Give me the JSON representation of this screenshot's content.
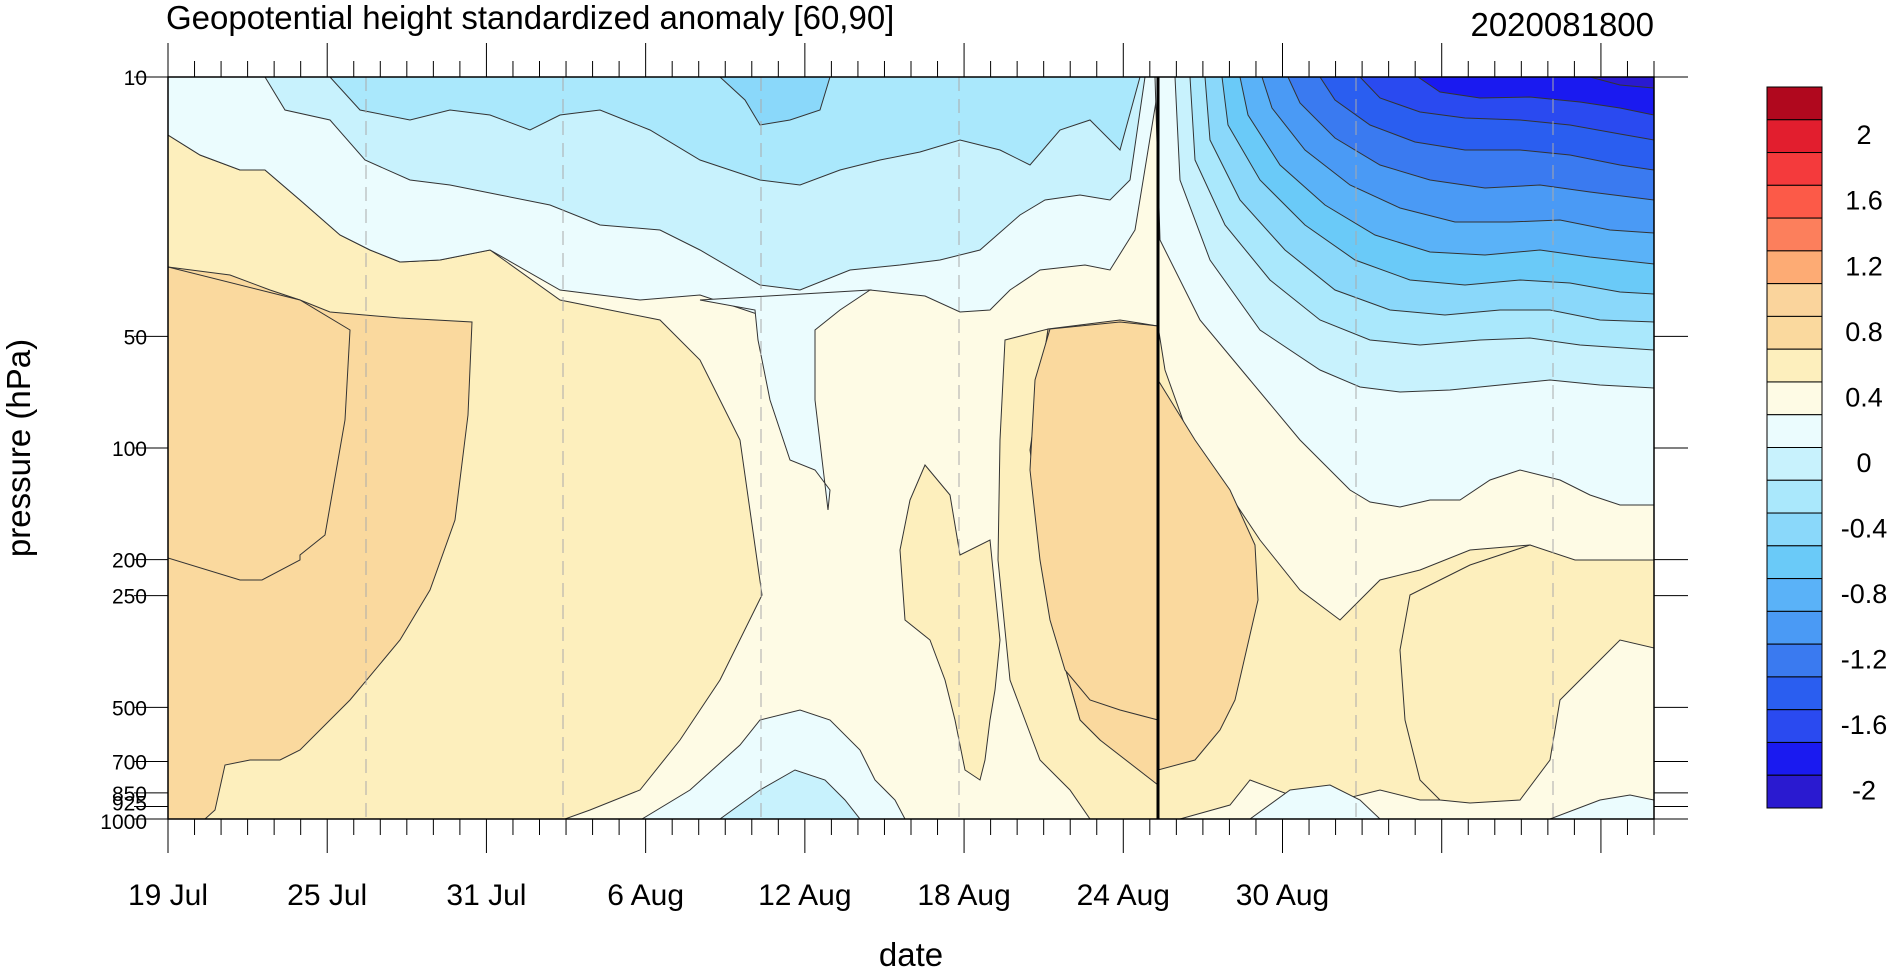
{
  "chart_data": {
    "type": "heatmap",
    "title": "Geopotential height standardized anomaly [60,90]",
    "date_label": "2020081800",
    "xlabel": "date",
    "ylabel": "pressure (hPa)",
    "x_ticks": [
      "19 Jul",
      "25 Jul",
      "31 Jul",
      "6 Aug",
      "12 Aug",
      "18 Aug",
      "24 Aug",
      "30 Aug"
    ],
    "y_ticks": [
      "10",
      "50",
      "100",
      "200",
      "250",
      "500",
      "700",
      "850",
      "925",
      "1000"
    ],
    "y_scale": "log (pressure)",
    "xlim": [
      "19 Jul",
      "3 Sep"
    ],
    "ylim": [
      1000,
      10
    ],
    "analysis_line": "18 Aug",
    "colorbar": {
      "levels": [
        -2.2,
        -2.0,
        -1.8,
        -1.6,
        -1.4,
        -1.2,
        -1.0,
        -0.8,
        -0.6,
        -0.4,
        -0.2,
        0,
        0.2,
        0.4,
        0.6,
        0.8,
        1.0,
        1.2,
        1.4,
        1.6,
        1.8,
        2.0,
        2.2
      ],
      "labels": [
        "2",
        "1.6",
        "1.2",
        "0.8",
        "0.4",
        "0",
        "-0.4",
        "-0.8",
        "-1.2",
        "-1.6",
        "-2"
      ],
      "colors": [
        "#2a1ad0",
        "#1a1af0",
        "#2a4af0",
        "#2a5ef0",
        "#3a7af0",
        "#4a9af5",
        "#5ab2f8",
        "#6acaf8",
        "#8ad8fa",
        "#aae8fc",
        "#c8f2fd",
        "#ebfcfe",
        "#fefbe5",
        "#fdefbd",
        "#fad99e",
        "#fad49c",
        "#fdab74",
        "#fc7f5c",
        "#fc5a48",
        "#f43a3c",
        "#e21e2e",
        "#b0081e"
      ]
    },
    "regions": [
      {
        "date": "19-31 Jul",
        "pressure": "20-1000",
        "value": 0.3
      },
      {
        "date": "20-27 Jul",
        "pressure": "40-400",
        "value": 0.7
      },
      {
        "date": "21-23 Jul",
        "pressure": "50-100",
        "value": 0.9
      },
      {
        "date": "6-8 Aug",
        "pressure": "10-140",
        "value": -0.2
      },
      {
        "date": "15-21 Aug",
        "pressure": "50-650",
        "value": 0.7
      },
      {
        "date": "26 Aug-3 Sep",
        "pressure": "200-850",
        "value": 0.3
      },
      {
        "date": "18 Aug-3 Sep",
        "pressure": "10-140",
        "value": -1.0
      },
      {
        "date": "1-3 Sep",
        "pressure": "10-20",
        "value": -2.1
      }
    ]
  }
}
